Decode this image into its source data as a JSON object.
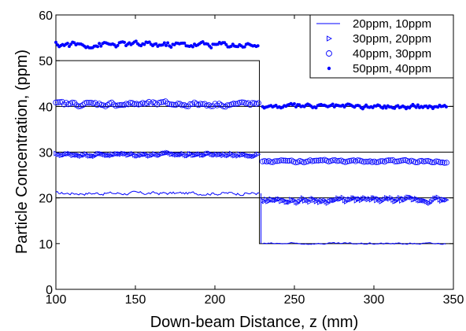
{
  "chart_data": {
    "type": "scatter",
    "title": "",
    "xlabel": "Down-beam Distance, z (mm)",
    "ylabel": "Particle Concentration, (ppm)",
    "xlim": [
      100,
      350
    ],
    "ylim": [
      0,
      60
    ],
    "xticks": [
      100,
      150,
      200,
      250,
      300,
      350
    ],
    "yticks": [
      0,
      10,
      20,
      30,
      40,
      50,
      60
    ],
    "grid": false,
    "legend_position": "top-right",
    "marker_color": "#0000ff",
    "reference_line_color": "#000000",
    "series": [
      {
        "name": "20ppm, 10ppm",
        "marker": "line",
        "segments": [
          {
            "x_start": 100,
            "x_end": 228,
            "level": 21.0,
            "noise": 0.7
          },
          {
            "x_start": 230,
            "x_end": 346,
            "level": 10.0,
            "noise": 0.35
          }
        ],
        "reference": [
          {
            "x_start": 100,
            "x_end": 228,
            "y": 20
          },
          {
            "x_start": 228,
            "x_end": 350,
            "y": 10
          }
        ]
      },
      {
        "name": "30ppm, 20ppm",
        "marker": "triangle-right",
        "segments": [
          {
            "x_start": 100,
            "x_end": 228,
            "level": 29.5,
            "noise": 0.6
          },
          {
            "x_start": 230,
            "x_end": 346,
            "level": 19.5,
            "noise": 1.0
          }
        ],
        "reference": [
          {
            "x_start": 100,
            "x_end": 228,
            "y": 30
          },
          {
            "x_start": 228,
            "x_end": 350,
            "y": 20
          }
        ]
      },
      {
        "name": "40ppm, 30ppm",
        "marker": "circle-open",
        "segments": [
          {
            "x_start": 100,
            "x_end": 228,
            "level": 40.5,
            "noise": 0.9
          },
          {
            "x_start": 230,
            "x_end": 346,
            "level": 28.0,
            "noise": 0.5
          }
        ],
        "reference": [
          {
            "x_start": 100,
            "x_end": 228,
            "y": 40
          },
          {
            "x_start": 228,
            "x_end": 350,
            "y": 30
          }
        ]
      },
      {
        "name": "50ppm, 40ppm",
        "marker": "dot",
        "segments": [
          {
            "x_start": 100,
            "x_end": 228,
            "level": 53.5,
            "noise": 1.2
          },
          {
            "x_start": 230,
            "x_end": 346,
            "level": 40.0,
            "noise": 1.0
          }
        ],
        "reference": [
          {
            "x_start": 100,
            "x_end": 228,
            "y": 50
          },
          {
            "x_start": 228,
            "x_end": 350,
            "y": 40
          }
        ]
      }
    ]
  }
}
